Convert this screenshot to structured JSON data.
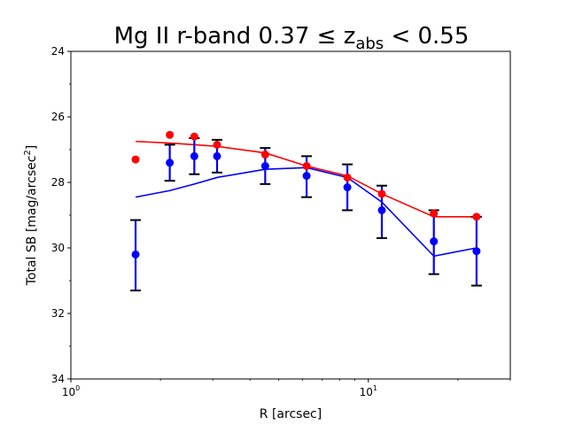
{
  "chart_data": {
    "type": "scatter",
    "title": "Mg II r-band 0.37 ≤ z",
    "title_sub": "abs",
    "title_tail": " < 0.55",
    "xlabel": "R [arcsec]",
    "ylabel": "Total SB [mag/arcsec",
    "ylabel_sup": "2",
    "ylabel_tail": "]",
    "xscale": "log",
    "xlim": [
      1,
      30
    ],
    "ylim": [
      34,
      24
    ],
    "y_inverted": true,
    "x_major_ticks": [
      {
        "value": 1,
        "base": "10",
        "exp": "0"
      },
      {
        "value": 10,
        "base": "10",
        "exp": "1"
      }
    ],
    "y_ticks": [
      24,
      26,
      28,
      30,
      32,
      34
    ],
    "y_tick_labels": [
      "24",
      "26",
      "28",
      "30",
      "32",
      "34"
    ],
    "series": [
      {
        "name": "blue points with errors",
        "color": "#0000ff",
        "x": [
          1.65,
          2.15,
          2.6,
          3.1,
          4.5,
          6.2,
          8.5,
          11.1,
          16.6,
          23.1
        ],
        "y": [
          30.2,
          27.4,
          27.2,
          27.2,
          27.5,
          27.8,
          28.15,
          28.85,
          29.8,
          30.1
        ],
        "yerr_low": [
          1.1,
          0.55,
          0.55,
          0.5,
          0.55,
          0.65,
          0.7,
          0.85,
          1.0,
          1.05
        ],
        "yerr_high": [
          1.05,
          0.55,
          0.55,
          0.5,
          0.55,
          0.6,
          0.7,
          0.75,
          0.95,
          1.05
        ]
      },
      {
        "name": "red points",
        "color": "#ff0000",
        "x": [
          1.65,
          2.15,
          2.6,
          3.1,
          4.5,
          6.2,
          8.5,
          11.1,
          16.6,
          23.1
        ],
        "y": [
          27.3,
          26.55,
          26.6,
          26.85,
          27.15,
          27.5,
          27.85,
          28.35,
          28.95,
          29.05
        ]
      },
      {
        "name": "red line",
        "color": "#ff0000",
        "x": [
          1.65,
          2.15,
          2.6,
          3.1,
          4.5,
          6.2,
          8.5,
          11.1,
          16.6,
          23.1
        ],
        "y": [
          26.75,
          26.8,
          26.85,
          26.9,
          27.1,
          27.5,
          27.8,
          28.35,
          29.05,
          29.05
        ]
      },
      {
        "name": "blue line",
        "color": "#0000ff",
        "x": [
          1.65,
          2.15,
          2.6,
          3.1,
          4.5,
          6.2,
          8.5,
          11.1,
          16.6,
          23.1
        ],
        "y": [
          28.45,
          28.25,
          28.05,
          27.85,
          27.6,
          27.55,
          27.85,
          28.6,
          30.25,
          30.0
        ]
      }
    ]
  }
}
